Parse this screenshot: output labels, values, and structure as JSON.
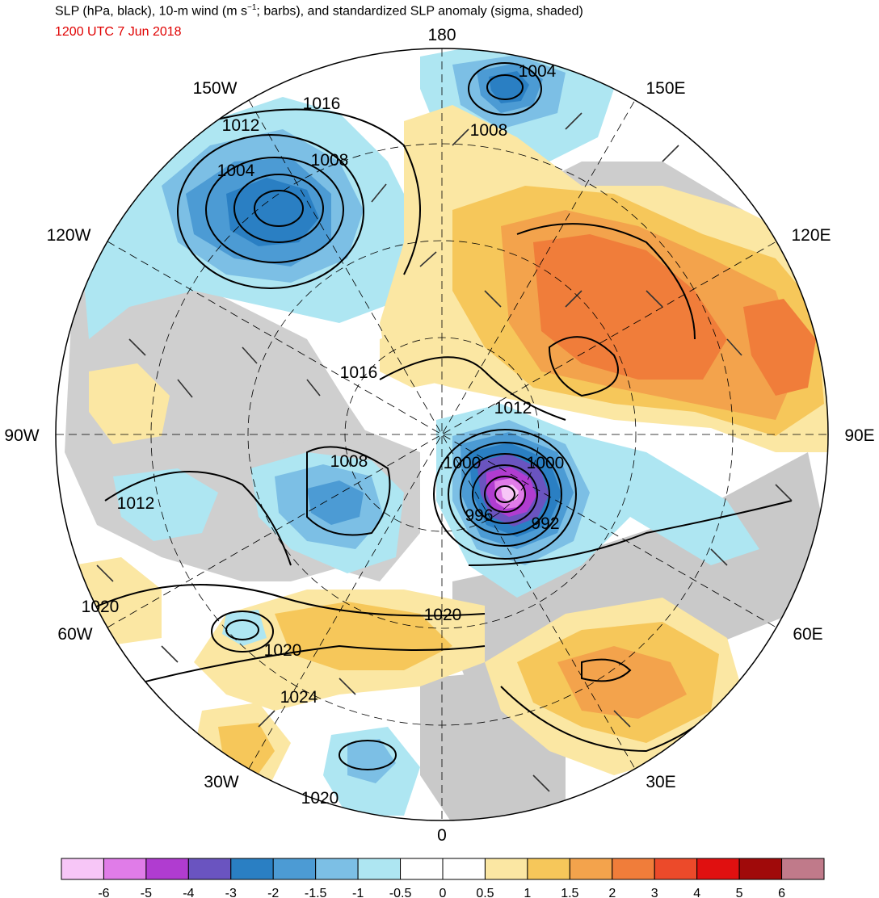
{
  "title": {
    "pre": "SLP (hPa, black), 10-m wind (m s",
    "sup": "−1",
    "post": "; barbs), and standardized SLP anomaly (sigma, shaded)"
  },
  "subtitle": "1200 UTC 7 Jun 2018",
  "colors": {
    "subtitle": "#e00000"
  },
  "longitude_labels": [
    {
      "text": "180",
      "lon": 180
    },
    {
      "text": "150E",
      "lon": 150
    },
    {
      "text": "120E",
      "lon": 120
    },
    {
      "text": "90E",
      "lon": 90
    },
    {
      "text": "60E",
      "lon": 60
    },
    {
      "text": "30E",
      "lon": 30
    },
    {
      "text": "0",
      "lon": 0
    },
    {
      "text": "30W",
      "lon": -30
    },
    {
      "text": "60W",
      "lon": -60
    },
    {
      "text": "90W",
      "lon": -90
    },
    {
      "text": "120W",
      "lon": -120
    },
    {
      "text": "150W",
      "lon": -150
    }
  ],
  "isobar_labels": [
    "1004",
    "1008",
    "1016",
    "1012",
    "1004",
    "1008",
    "1016",
    "1012",
    "1000",
    "1000",
    "996",
    "992",
    "1008",
    "1012",
    "1020",
    "1020",
    "1020",
    "1024",
    "1020"
  ],
  "anomaly_centers": [
    {
      "name": "north-pacific-low",
      "sigma": -3
    },
    {
      "name": "alaska-low",
      "sigma": -3
    },
    {
      "name": "kara-sea-low",
      "sigma": -5
    },
    {
      "name": "siberia-high",
      "sigma": 2
    },
    {
      "name": "canadian-archipelago-low",
      "sigma": -1.5
    },
    {
      "name": "russia-high",
      "sigma": 2
    },
    {
      "name": "north-atlantic-high",
      "sigma": 1.5
    }
  ],
  "colorbar": {
    "colors": [
      "#f7c6f7",
      "#e07ce8",
      "#b03cd0",
      "#6a54c0",
      "#2a7fc3",
      "#4c9bd4",
      "#7cbfe5",
      "#aee6f2",
      "#ffffff",
      "#ffffff",
      "#fbe7a3",
      "#f6c75a",
      "#f3a34c",
      "#f07d3a",
      "#ec4a2a",
      "#e01010",
      "#a00a0a",
      "#c07a8a"
    ],
    "labels": [
      "-6",
      "-5",
      "-4",
      "-3",
      "-2",
      "-1.5",
      "-1",
      "-0.5",
      "0",
      "0.5",
      "1",
      "1.5",
      "2",
      "3",
      "4",
      "5",
      "6"
    ]
  }
}
